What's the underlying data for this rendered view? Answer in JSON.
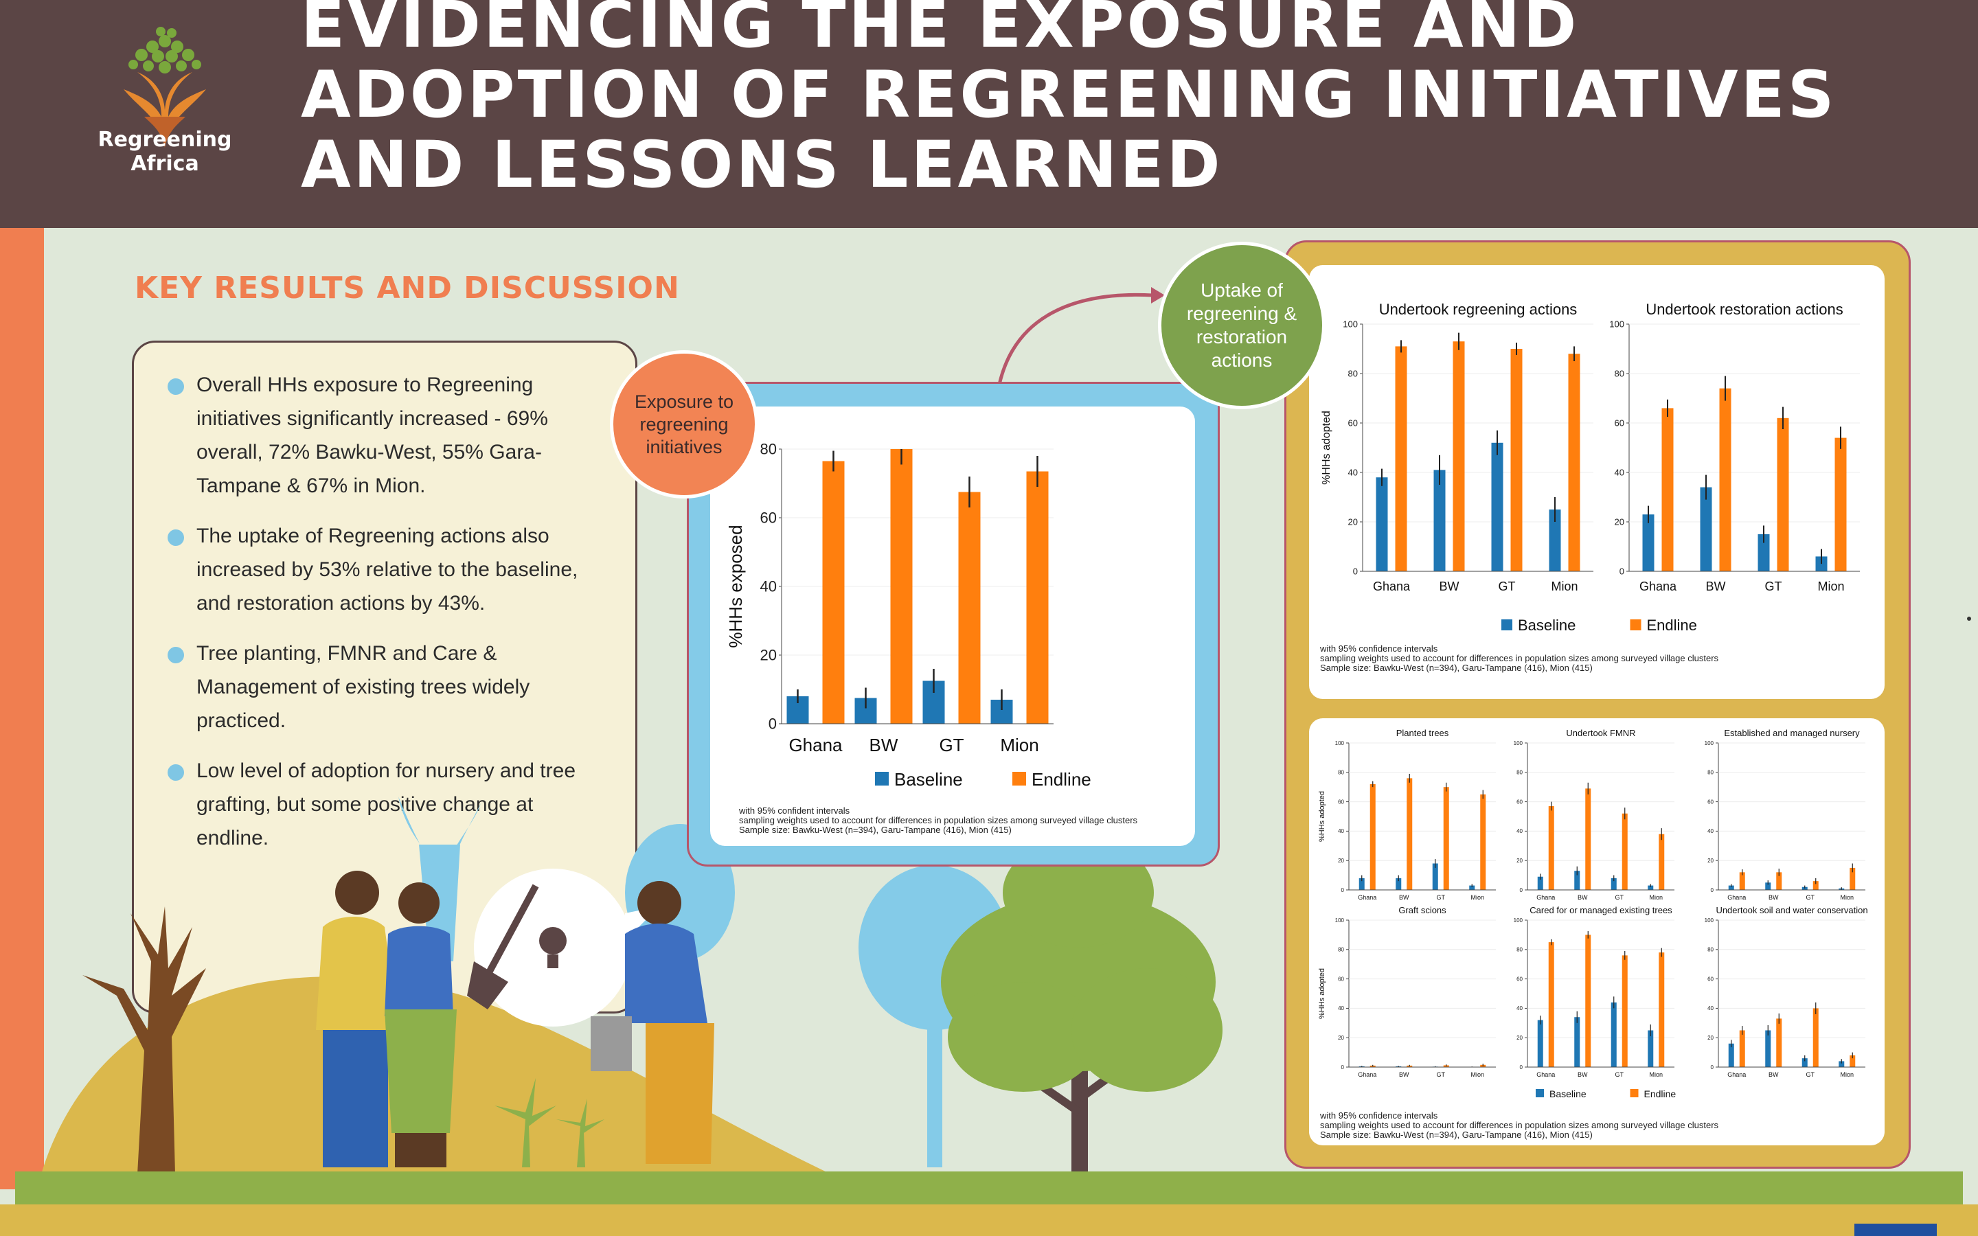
{
  "header": {
    "logo_text": "Regreening Africa",
    "title_lines": [
      "EVIDENCING THE EXPOSURE AND",
      "ADOPTION OF REGREENING INITIATIVES",
      "AND LESSONS LEARNED"
    ]
  },
  "section_title": "KEY RESULTS AND DISCUSSION",
  "bullets": [
    "Overall HHs exposure to Regreening initiatives significantly increased -  69% overall, 72% Bawku-West, 55% Gara-Tampane & 67% in Mion.",
    "The uptake of Regreening actions also increased by 53% relative to the baseline, and restoration actions by 43%.",
    "Tree planting, FMNR and Care & Management of existing trees widely practiced.",
    "Low level of adoption for nursery and tree grafting,  but some positive change at endline."
  ],
  "circles": {
    "exposure": "Exposure to regreening initiatives",
    "uptake": "Uptake of regreening & restoration actions"
  },
  "colors": {
    "baseline": "#1f77b4",
    "endline": "#ff7f0e",
    "header_bg": "#5b4545",
    "accent_orange": "#f07e50",
    "accent_green": "#7ea24d"
  },
  "legend": {
    "baseline": "Baseline",
    "endline": "Endline"
  },
  "notes": {
    "exposure": [
      "with 95% confident intervals",
      "sampling weights used to account for differences in population sizes among surveyed village clusters",
      "Sample size: Bawku-West (n=394), Garu-Tampane (416), Mion (415)"
    ],
    "adoption": [
      "with 95% confidence intervals",
      "sampling weights used to account for differences in population sizes among surveyed village clusters",
      "Sample size: Bawku-West (n=394), Garu-Tampane (416), Mion (415)"
    ]
  },
  "chart_data": [
    {
      "type": "bar",
      "title": "",
      "ylabel": "%HHs exposed",
      "categories": [
        "Ghana",
        "BW",
        "GT",
        "Mion"
      ],
      "ylim": [
        0,
        80
      ],
      "yticks": [
        0,
        20,
        40,
        60,
        80
      ],
      "series": [
        {
          "name": "Baseline",
          "values": [
            8,
            7.5,
            12.5,
            7
          ],
          "err": [
            2,
            3,
            3.5,
            3
          ]
        },
        {
          "name": "Endline",
          "values": [
            76.5,
            80,
            67.5,
            73.5
          ],
          "err": [
            3,
            4.5,
            4.5,
            4.5
          ]
        }
      ]
    },
    {
      "type": "bar",
      "title": "Undertook regreening actions",
      "ylabel": "%HHs adopted",
      "categories": [
        "Ghana",
        "BW",
        "GT",
        "Mion"
      ],
      "ylim": [
        0,
        100
      ],
      "yticks": [
        0,
        20,
        40,
        60,
        80,
        100
      ],
      "series": [
        {
          "name": "Baseline",
          "values": [
            38,
            41,
            52,
            25
          ],
          "err": [
            3.5,
            6,
            5,
            5
          ]
        },
        {
          "name": "Endline",
          "values": [
            91,
            93,
            90,
            88
          ],
          "err": [
            2.5,
            3.5,
            2.5,
            3
          ]
        }
      ]
    },
    {
      "type": "bar",
      "title": "Undertook restoration actions",
      "ylabel": "",
      "categories": [
        "Ghana",
        "BW",
        "GT",
        "Mion"
      ],
      "ylim": [
        0,
        100
      ],
      "yticks": [
        0,
        20,
        40,
        60,
        80,
        100
      ],
      "series": [
        {
          "name": "Baseline",
          "values": [
            23,
            34,
            15,
            6
          ],
          "err": [
            3.5,
            5,
            3.5,
            3
          ]
        },
        {
          "name": "Endline",
          "values": [
            66,
            74,
            62,
            54
          ],
          "err": [
            3.5,
            5,
            4.5,
            4.5
          ]
        }
      ]
    },
    {
      "type": "bar",
      "title": "Planted trees",
      "ylabel": "%HHs adopted",
      "categories": [
        "Ghana",
        "BW",
        "GT",
        "Mion"
      ],
      "ylim": [
        0,
        100
      ],
      "yticks": [
        0,
        20,
        40,
        60,
        80,
        100
      ],
      "series": [
        {
          "name": "Baseline",
          "values": [
            8,
            8,
            18,
            3
          ],
          "err": [
            2,
            2,
            3,
            1
          ]
        },
        {
          "name": "Endline",
          "values": [
            72,
            76,
            70,
            65
          ],
          "err": [
            2,
            3,
            3,
            3
          ]
        }
      ]
    },
    {
      "type": "bar",
      "title": "Undertook FMNR",
      "ylabel": "",
      "categories": [
        "Ghana",
        "BW",
        "GT",
        "Mion"
      ],
      "ylim": [
        0,
        100
      ],
      "yticks": [
        0,
        20,
        40,
        60,
        80,
        100
      ],
      "series": [
        {
          "name": "Baseline",
          "values": [
            9,
            13,
            8,
            3
          ],
          "err": [
            2,
            3,
            2,
            1
          ]
        },
        {
          "name": "Endline",
          "values": [
            57,
            69,
            52,
            38
          ],
          "err": [
            3,
            4,
            4,
            4
          ]
        }
      ]
    },
    {
      "type": "bar",
      "title": "Established and managed nursery",
      "ylabel": "",
      "categories": [
        "Ghana",
        "BW",
        "GT",
        "Mion"
      ],
      "ylim": [
        0,
        100
      ],
      "yticks": [
        0,
        20,
        40,
        60,
        80,
        100
      ],
      "series": [
        {
          "name": "Baseline",
          "values": [
            3,
            5,
            2,
            1
          ],
          "err": [
            1,
            1.5,
            1,
            0.8
          ]
        },
        {
          "name": "Endline",
          "values": [
            12,
            12,
            6,
            15
          ],
          "err": [
            2,
            2.5,
            2,
            3
          ]
        }
      ]
    },
    {
      "type": "bar",
      "title": "Graft scions",
      "ylabel": "%HHs adopted",
      "categories": [
        "Ghana",
        "BW",
        "GT",
        "Mion"
      ],
      "ylim": [
        0,
        100
      ],
      "yticks": [
        0,
        20,
        40,
        60,
        80,
        100
      ],
      "series": [
        {
          "name": "Baseline",
          "values": [
            0.5,
            0.5,
            0.3,
            0.2
          ],
          "err": [
            0.3,
            0.3,
            0.3,
            0.2
          ]
        },
        {
          "name": "Endline",
          "values": [
            1,
            1,
            1.2,
            1.5
          ],
          "err": [
            0.5,
            0.5,
            0.6,
            0.8
          ]
        }
      ]
    },
    {
      "type": "bar",
      "title": "Cared for or managed existing trees",
      "ylabel": "",
      "categories": [
        "Ghana",
        "BW",
        "GT",
        "Mion"
      ],
      "ylim": [
        0,
        100
      ],
      "yticks": [
        0,
        20,
        40,
        60,
        80,
        100
      ],
      "series": [
        {
          "name": "Baseline",
          "values": [
            32,
            34,
            44,
            25
          ],
          "err": [
            3,
            4,
            4,
            4
          ]
        },
        {
          "name": "Endline",
          "values": [
            85,
            90,
            76,
            78
          ],
          "err": [
            2,
            2.5,
            3,
            3
          ]
        }
      ]
    },
    {
      "type": "bar",
      "title": "Undertook soil and water conservation",
      "ylabel": "",
      "categories": [
        "Ghana",
        "BW",
        "GT",
        "Mion"
      ],
      "ylim": [
        0,
        100
      ],
      "yticks": [
        0,
        20,
        40,
        60,
        80,
        100
      ],
      "series": [
        {
          "name": "Baseline",
          "values": [
            16,
            25,
            6,
            4
          ],
          "err": [
            2.5,
            3.5,
            2,
            1.5
          ]
        },
        {
          "name": "Endline",
          "values": [
            25,
            33,
            40,
            8
          ],
          "err": [
            3,
            3.5,
            4,
            2
          ]
        }
      ]
    }
  ]
}
